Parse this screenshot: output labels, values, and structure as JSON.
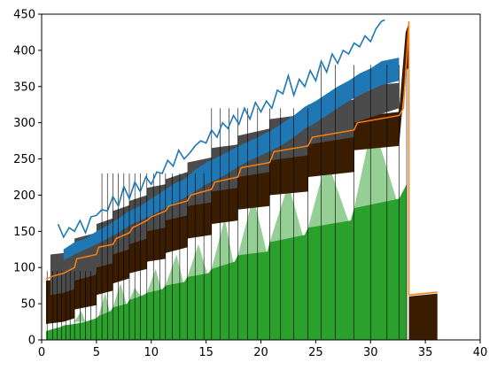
{
  "chart_data": {
    "type": "area",
    "title": "",
    "xlabel": "",
    "ylabel": "",
    "xlim": [
      0,
      40
    ],
    "ylim": [
      0,
      450
    ],
    "xticks": [
      0,
      5,
      10,
      15,
      20,
      25,
      30,
      35,
      40
    ],
    "yticks": [
      0,
      50,
      100,
      150,
      200,
      250,
      300,
      350,
      400,
      450
    ],
    "grid": false,
    "legend": "none",
    "series": [
      {
        "role": "green-base",
        "color": "#2ca02c",
        "x": [
          0.4,
          1.0,
          1.8,
          2.0,
          3.0,
          4.0,
          5.0,
          5.2,
          6.3,
          6.5,
          7.8,
          8.0,
          9.3,
          9.6,
          11.0,
          11.3,
          13.0,
          13.3,
          15.2,
          15.5,
          17.6,
          17.9,
          20.6,
          20.8,
          24.0,
          24.3,
          28.2,
          28.5,
          32.6,
          33.3
        ],
        "y": [
          12,
          15,
          18,
          20,
          22,
          25,
          30,
          33,
          40,
          45,
          50,
          55,
          62,
          65,
          70,
          75,
          80,
          87,
          92,
          98,
          108,
          117,
          122,
          135,
          145,
          155,
          165,
          182,
          195,
          215
        ]
      },
      {
        "role": "green-peaks",
        "color": "#2ca02c",
        "opacity": 0.5,
        "peaks": [
          {
            "x0": 3.0,
            "xp": 3.6,
            "x1": 4.0,
            "base": 25,
            "top": 40
          },
          {
            "x0": 5.2,
            "xp": 5.8,
            "x1": 6.3,
            "base": 33,
            "top": 65
          },
          {
            "x0": 6.5,
            "xp": 7.2,
            "x1": 7.8,
            "base": 45,
            "top": 78
          },
          {
            "x0": 8.0,
            "xp": 8.5,
            "x1": 9.3,
            "base": 55,
            "top": 72
          },
          {
            "x0": 9.6,
            "xp": 10.4,
            "x1": 11.0,
            "base": 65,
            "top": 98
          },
          {
            "x0": 11.3,
            "xp": 12.3,
            "x1": 13.0,
            "base": 75,
            "top": 118
          },
          {
            "x0": 13.3,
            "xp": 14.3,
            "x1": 15.2,
            "base": 87,
            "top": 132
          },
          {
            "x0": 15.5,
            "xp": 16.7,
            "x1": 17.6,
            "base": 98,
            "top": 168
          },
          {
            "x0": 17.9,
            "xp": 19.3,
            "x1": 20.6,
            "base": 117,
            "top": 198
          },
          {
            "x0": 20.8,
            "xp": 22.5,
            "x1": 24.0,
            "base": 135,
            "top": 215
          },
          {
            "x0": 24.3,
            "xp": 26.0,
            "x1": 28.2,
            "base": 155,
            "top": 250
          },
          {
            "x0": 28.5,
            "xp": 30.2,
            "x1": 32.6,
            "base": 182,
            "top": 302
          }
        ]
      },
      {
        "role": "brown-band",
        "color": "#3a1c00",
        "x": [
          0.4,
          2.0,
          3.0,
          3.0,
          5.0,
          5.0,
          6.5,
          6.5,
          8.0,
          8.0,
          9.6,
          9.6,
          11.3,
          11.3,
          13.3,
          13.3,
          15.5,
          15.5,
          17.9,
          17.9,
          20.8,
          20.8,
          24.3,
          24.3,
          28.5,
          28.5,
          32.6,
          33.2,
          33.5,
          33.5,
          36.1
        ],
        "upper": [
          82,
          84,
          88,
          100,
          110,
          125,
          128,
          140,
          145,
          152,
          158,
          168,
          172,
          180,
          188,
          200,
          205,
          220,
          225,
          240,
          250,
          262,
          268,
          285,
          290,
          308,
          315,
          425,
          438,
          60,
          64
        ],
        "lower": [
          22,
          25,
          30,
          42,
          48,
          62,
          68,
          78,
          85,
          92,
          98,
          108,
          112,
          120,
          128,
          140,
          145,
          160,
          165,
          180,
          185,
          200,
          205,
          225,
          232,
          262,
          268,
          372,
          376,
          0,
          0
        ]
      },
      {
        "role": "dark-band",
        "color": "#4b4b4b",
        "x": [
          0.8,
          2.0,
          3.0,
          3.0,
          5.0,
          5.0,
          6.5,
          6.5,
          8.0,
          8.0,
          9.6,
          9.6,
          11.3,
          11.3,
          13.3,
          13.3,
          15.5,
          15.5,
          17.9,
          17.9,
          20.8,
          20.8,
          24.3,
          24.3,
          28.5,
          28.5,
          32.6
        ],
        "upper": [
          118,
          120,
          128,
          140,
          148,
          160,
          168,
          178,
          186,
          192,
          200,
          210,
          215,
          222,
          232,
          245,
          252,
          265,
          270,
          282,
          292,
          305,
          312,
          325,
          332,
          350,
          355
        ],
        "lower": [
          62,
          65,
          70,
          82,
          90,
          100,
          106,
          118,
          125,
          132,
          140,
          150,
          155,
          165,
          172,
          185,
          190,
          205,
          210,
          225,
          232,
          248,
          255,
          270,
          280,
          300,
          320
        ]
      },
      {
        "role": "orange-line",
        "color": "#ff7f0e",
        "x": [
          0.4,
          1.0,
          2.0,
          3.0,
          3.2,
          5.0,
          5.2,
          6.5,
          6.8,
          8.0,
          8.3,
          9.6,
          10.0,
          11.3,
          11.6,
          13.3,
          13.6,
          15.5,
          15.8,
          17.9,
          18.2,
          20.8,
          21.2,
          24.3,
          24.7,
          28.5,
          28.8,
          32.6,
          33.0,
          33.5,
          33.5,
          36.1
        ],
        "y": [
          84,
          88,
          92,
          100,
          112,
          118,
          128,
          132,
          140,
          148,
          155,
          165,
          170,
          178,
          185,
          192,
          200,
          208,
          218,
          225,
          238,
          245,
          260,
          268,
          280,
          290,
          300,
          310,
          320,
          440,
          62,
          66
        ]
      },
      {
        "role": "blue-line",
        "color": "#1f77b4",
        "x": [
          1.5,
          2.0,
          2.5,
          3.0,
          3.5,
          4.0,
          4.5,
          5.0,
          5.5,
          6.0,
          6.5,
          7.0,
          7.5,
          8.0,
          8.5,
          9.0,
          9.5,
          10.0,
          10.5,
          11.0,
          11.5,
          12.0,
          12.5,
          13.0,
          13.5,
          14.0,
          14.5,
          15.0,
          15.5,
          16.0,
          16.5,
          17.0,
          17.5,
          18.0,
          18.5,
          19.0,
          19.5,
          20.0,
          20.5,
          21.0,
          21.5,
          22.0,
          22.5,
          23.0,
          23.5,
          24.0,
          24.5,
          25.0,
          25.5,
          26.0,
          26.5,
          27.0,
          27.5,
          28.0,
          28.5,
          29.0,
          29.5,
          30.0,
          30.5,
          31.0,
          31.3
        ],
        "y": [
          160,
          142,
          155,
          150,
          165,
          148,
          170,
          172,
          180,
          178,
          198,
          185,
          212,
          195,
          218,
          205,
          225,
          215,
          232,
          230,
          248,
          240,
          262,
          250,
          258,
          268,
          275,
          272,
          290,
          280,
          300,
          292,
          310,
          298,
          320,
          305,
          328,
          315,
          330,
          320,
          345,
          340,
          365,
          338,
          360,
          350,
          372,
          358,
          385,
          370,
          395,
          382,
          400,
          395,
          410,
          405,
          420,
          412,
          430,
          440,
          442
        ]
      },
      {
        "role": "blue-band",
        "color": "#1f77b4",
        "x": [
          2.0,
          3.0,
          4.0,
          5.0,
          6.0,
          7.0,
          8.0,
          9.0,
          10.0,
          11.0,
          12.0,
          13.0,
          14.0,
          15.0,
          16.0,
          17.0,
          18.0,
          19.0,
          20.0,
          21.0,
          22.0,
          23.0,
          24.0,
          25.0,
          26.0,
          27.0,
          28.0,
          29.0,
          30.0,
          31.0,
          32.6
        ],
        "upper": [
          125,
          135,
          140,
          150,
          158,
          168,
          178,
          185,
          195,
          205,
          215,
          222,
          235,
          245,
          252,
          260,
          268,
          275,
          282,
          290,
          300,
          310,
          322,
          330,
          340,
          350,
          358,
          368,
          375,
          385,
          390
        ],
        "lower": [
          110,
          118,
          125,
          132,
          140,
          148,
          158,
          165,
          172,
          180,
          188,
          196,
          205,
          215,
          222,
          230,
          240,
          248,
          255,
          262,
          270,
          280,
          292,
          300,
          310,
          320,
          330,
          338,
          345,
          352,
          358
        ]
      }
    ],
    "vertical_lines_x": [
      0.5,
      1.0,
      1.4,
      1.8,
      2.2,
      2.6,
      3.0,
      3.5,
      4.0,
      4.5,
      5.0,
      5.5,
      6.0,
      6.5,
      7.0,
      7.5,
      8.0,
      8.5,
      9.0,
      9.6,
      10.2,
      10.8,
      11.3,
      11.9,
      12.6,
      13.3,
      14.0,
      14.8,
      15.5,
      16.3,
      17.1,
      17.9,
      18.8,
      19.7,
      20.8,
      21.8,
      23.0,
      24.3,
      25.5,
      26.8,
      28.5,
      30.0,
      31.5,
      32.6,
      33.3
    ]
  }
}
